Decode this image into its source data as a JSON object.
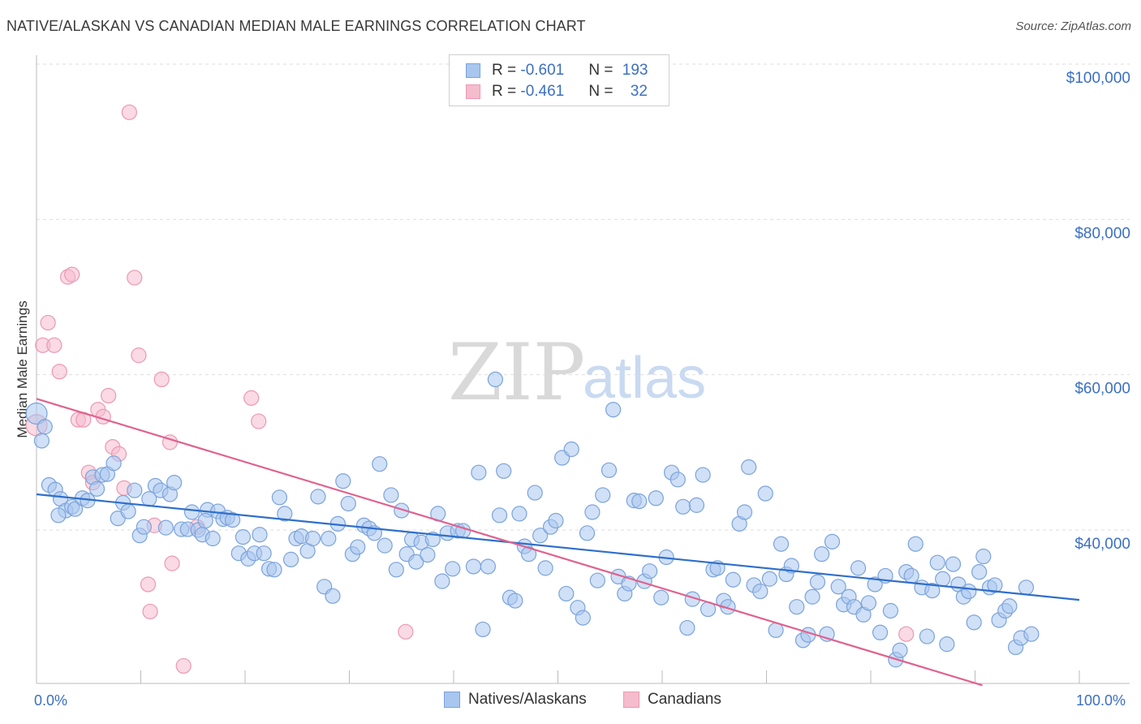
{
  "title": "NATIVE/ALASKAN VS CANADIAN MEDIAN MALE EARNINGS CORRELATION CHART",
  "source": "Source: ZipAtlas.com",
  "watermark": {
    "zip": "ZIP",
    "atlas": "atlas"
  },
  "colors": {
    "blue_fill": "#a9c6ee",
    "blue_stroke": "#7aa3dc",
    "blue_line": "#2f6fcb",
    "pink_fill": "#f5bccd",
    "pink_stroke": "#ec98b2",
    "pink_line": "#e0628f",
    "axis_text": "#3b6fc4",
    "grid": "#dddddd"
  },
  "legend_top": {
    "rows": [
      {
        "r_label": "R = ",
        "r_value": "-0.601",
        "n_label": "N = ",
        "n_value": "193",
        "series": "blue"
      },
      {
        "r_label": "R = ",
        "r_value": "-0.461",
        "n_label": "N = ",
        "n_value": "32",
        "series": "pink"
      }
    ]
  },
  "legend_bottom": [
    {
      "label": "Natives/Alaskans",
      "series": "blue"
    },
    {
      "label": "Canadians",
      "series": "pink"
    }
  ],
  "x_tick_labels": {
    "min": "0.0%",
    "max": "100.0%"
  },
  "chart_data": {
    "type": "scatter",
    "xlabel": "",
    "ylabel": "Median Male Earnings",
    "xlim": [
      0,
      100
    ],
    "ylim": [
      20000,
      102000
    ],
    "y_ticks": [
      {
        "value": 40000,
        "label": "$40,000"
      },
      {
        "value": 60000,
        "label": "$60,000"
      },
      {
        "value": 80000,
        "label": "$80,000"
      },
      {
        "value": 100000,
        "label": "$100,000"
      }
    ],
    "grid": true,
    "legend_placement": "bottom",
    "series": [
      {
        "name": "Natives/Alaskans",
        "color": "#a9c6ee",
        "trend": {
          "x": [
            0,
            100
          ],
          "y": [
            44600,
            31000
          ]
        },
        "points": [
          [
            0,
            55000
          ],
          [
            0.5,
            51500
          ],
          [
            1.2,
            45800
          ],
          [
            1.8,
            45200
          ],
          [
            2.3,
            44000
          ],
          [
            2.8,
            42500
          ],
          [
            3.4,
            43000
          ],
          [
            3.7,
            42700
          ],
          [
            4.4,
            44100
          ],
          [
            4.9,
            43800
          ],
          [
            5.4,
            46800
          ],
          [
            5.8,
            45300
          ],
          [
            6.3,
            47100
          ],
          [
            6.8,
            47200
          ],
          [
            7.4,
            48600
          ],
          [
            7.8,
            41500
          ],
          [
            8.3,
            43500
          ],
          [
            8.8,
            42400
          ],
          [
            9.4,
            45100
          ],
          [
            9.9,
            39300
          ],
          [
            10.3,
            40400
          ],
          [
            10.8,
            44000
          ],
          [
            11.4,
            45700
          ],
          [
            11.9,
            45100
          ],
          [
            12.4,
            40300
          ],
          [
            12.8,
            44600
          ],
          [
            13.2,
            46100
          ],
          [
            13.9,
            40100
          ],
          [
            14.5,
            40100
          ],
          [
            14.9,
            42300
          ],
          [
            15.5,
            40000
          ],
          [
            15.9,
            39400
          ],
          [
            16.4,
            42600
          ],
          [
            16.9,
            38900
          ],
          [
            17.4,
            42400
          ],
          [
            17.9,
            41400
          ],
          [
            18.3,
            41600
          ],
          [
            18.8,
            41300
          ],
          [
            19.4,
            37000
          ],
          [
            19.8,
            39100
          ],
          [
            20.3,
            36300
          ],
          [
            20.9,
            37000
          ],
          [
            21.4,
            39400
          ],
          [
            21.8,
            37000
          ],
          [
            22.3,
            35000
          ],
          [
            22.8,
            34900
          ],
          [
            23.3,
            44200
          ],
          [
            23.8,
            42100
          ],
          [
            24.4,
            36200
          ],
          [
            24.9,
            38900
          ],
          [
            25.4,
            39200
          ],
          [
            26.0,
            37300
          ],
          [
            26.5,
            38900
          ],
          [
            27.0,
            44300
          ],
          [
            27.6,
            32700
          ],
          [
            28.0,
            38900
          ],
          [
            28.4,
            31500
          ],
          [
            28.9,
            40800
          ],
          [
            29.4,
            46300
          ],
          [
            29.9,
            43400
          ],
          [
            30.3,
            36900
          ],
          [
            30.8,
            37800
          ],
          [
            31.4,
            40600
          ],
          [
            31.9,
            40200
          ],
          [
            32.4,
            39600
          ],
          [
            32.9,
            48500
          ],
          [
            33.4,
            38000
          ],
          [
            34.0,
            44500
          ],
          [
            34.5,
            34900
          ],
          [
            35.0,
            42500
          ],
          [
            35.5,
            36900
          ],
          [
            36.0,
            38800
          ],
          [
            36.4,
            35900
          ],
          [
            36.9,
            38400
          ],
          [
            37.5,
            36800
          ],
          [
            38.0,
            38800
          ],
          [
            38.5,
            42100
          ],
          [
            38.9,
            33400
          ],
          [
            39.4,
            39600
          ],
          [
            39.9,
            35000
          ],
          [
            40.4,
            39900
          ],
          [
            40.9,
            39900
          ],
          [
            41.9,
            35300
          ],
          [
            42.4,
            47400
          ],
          [
            42.8,
            27200
          ],
          [
            43.3,
            35300
          ],
          [
            44.0,
            59400
          ],
          [
            44.4,
            41900
          ],
          [
            44.8,
            47600
          ],
          [
            45.4,
            31300
          ],
          [
            45.9,
            30900
          ],
          [
            46.3,
            42100
          ],
          [
            46.8,
            37900
          ],
          [
            47.2,
            36900
          ],
          [
            47.8,
            44800
          ],
          [
            48.3,
            39300
          ],
          [
            48.8,
            35100
          ],
          [
            49.3,
            40400
          ],
          [
            49.8,
            41200
          ],
          [
            50.4,
            49300
          ],
          [
            50.8,
            31800
          ],
          [
            51.3,
            50400
          ],
          [
            51.9,
            30000
          ],
          [
            52.4,
            28700
          ],
          [
            52.8,
            39600
          ],
          [
            53.3,
            42300
          ],
          [
            53.8,
            33500
          ],
          [
            54.3,
            44500
          ],
          [
            54.9,
            47700
          ],
          [
            55.3,
            55500
          ],
          [
            55.8,
            34000
          ],
          [
            56.4,
            31800
          ],
          [
            56.8,
            33100
          ],
          [
            57.3,
            43800
          ],
          [
            57.8,
            43700
          ],
          [
            58.3,
            33400
          ],
          [
            58.8,
            34700
          ],
          [
            59.4,
            44100
          ],
          [
            59.9,
            31300
          ],
          [
            60.4,
            36500
          ],
          [
            60.9,
            47400
          ],
          [
            61.5,
            46500
          ],
          [
            62.0,
            43000
          ],
          [
            62.4,
            27400
          ],
          [
            62.9,
            31100
          ],
          [
            63.3,
            43200
          ],
          [
            63.9,
            47100
          ],
          [
            64.4,
            29800
          ],
          [
            64.9,
            34900
          ],
          [
            65.3,
            35100
          ],
          [
            65.9,
            30900
          ],
          [
            66.3,
            30100
          ],
          [
            66.8,
            33600
          ],
          [
            67.4,
            40800
          ],
          [
            67.9,
            42300
          ],
          [
            68.3,
            48100
          ],
          [
            68.8,
            32900
          ],
          [
            69.4,
            32100
          ],
          [
            69.9,
            44700
          ],
          [
            70.3,
            33700
          ],
          [
            70.9,
            27100
          ],
          [
            71.4,
            38200
          ],
          [
            71.9,
            34300
          ],
          [
            72.4,
            35400
          ],
          [
            72.9,
            30100
          ],
          [
            73.5,
            25800
          ],
          [
            74.0,
            26500
          ],
          [
            74.4,
            31400
          ],
          [
            74.9,
            33300
          ],
          [
            75.3,
            36900
          ],
          [
            75.8,
            26600
          ],
          [
            76.3,
            38500
          ],
          [
            76.9,
            32700
          ],
          [
            77.4,
            30400
          ],
          [
            77.9,
            31400
          ],
          [
            78.4,
            30100
          ],
          [
            78.8,
            35100
          ],
          [
            79.3,
            29100
          ],
          [
            79.8,
            30600
          ],
          [
            80.4,
            33000
          ],
          [
            80.9,
            26800
          ],
          [
            81.4,
            34100
          ],
          [
            81.9,
            29600
          ],
          [
            82.4,
            23300
          ],
          [
            82.8,
            24500
          ],
          [
            83.4,
            34600
          ],
          [
            83.9,
            34100
          ],
          [
            84.3,
            38200
          ],
          [
            84.9,
            32600
          ],
          [
            85.4,
            26300
          ],
          [
            85.9,
            32200
          ],
          [
            86.4,
            35800
          ],
          [
            86.9,
            33700
          ],
          [
            87.3,
            25300
          ],
          [
            87.9,
            35600
          ],
          [
            88.4,
            33000
          ],
          [
            88.9,
            31400
          ],
          [
            89.4,
            32100
          ],
          [
            89.9,
            28100
          ],
          [
            90.4,
            34600
          ],
          [
            90.8,
            36600
          ],
          [
            91.4,
            32600
          ],
          [
            91.9,
            32900
          ],
          [
            92.3,
            28400
          ],
          [
            92.9,
            29600
          ],
          [
            93.3,
            30200
          ],
          [
            93.9,
            24900
          ],
          [
            94.4,
            26100
          ],
          [
            94.9,
            32600
          ],
          [
            95.4,
            26600
          ],
          [
            0.8,
            53300
          ],
          [
            2.1,
            41900
          ],
          [
            16.2,
            41200
          ]
        ]
      },
      {
        "name": "Canadians",
        "color": "#f5bccd",
        "trend": {
          "x": [
            0,
            90.7
          ],
          "y": [
            56900,
            20000
          ]
        },
        "points": [
          [
            0,
            53500
          ],
          [
            0.6,
            63800
          ],
          [
            1.1,
            66700
          ],
          [
            1.7,
            63800
          ],
          [
            2.2,
            60400
          ],
          [
            3.0,
            72600
          ],
          [
            3.4,
            72900
          ],
          [
            4.0,
            54200
          ],
          [
            4.5,
            54200
          ],
          [
            5.0,
            47400
          ],
          [
            5.4,
            46100
          ],
          [
            5.9,
            55500
          ],
          [
            6.4,
            54600
          ],
          [
            6.9,
            57300
          ],
          [
            7.3,
            50700
          ],
          [
            7.9,
            49800
          ],
          [
            8.4,
            45400
          ],
          [
            8.9,
            93800
          ],
          [
            9.4,
            72500
          ],
          [
            9.8,
            62500
          ],
          [
            10.7,
            33000
          ],
          [
            10.9,
            29500
          ],
          [
            11.3,
            40600
          ],
          [
            12.0,
            59400
          ],
          [
            12.8,
            51300
          ],
          [
            13.0,
            35700
          ],
          [
            14.1,
            22500
          ],
          [
            15.4,
            40400
          ],
          [
            20.6,
            57000
          ],
          [
            21.3,
            54000
          ],
          [
            35.4,
            26900
          ],
          [
            83.4,
            26600
          ]
        ]
      }
    ]
  }
}
